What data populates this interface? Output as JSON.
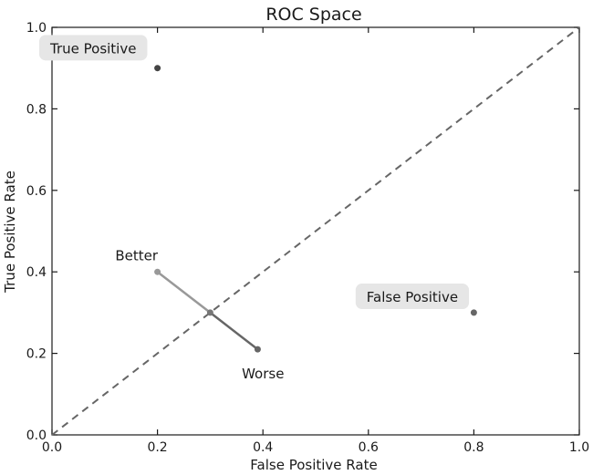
{
  "chart_data": {
    "type": "scatter",
    "title": "ROC Space",
    "xlabel": "False Positive Rate",
    "ylabel": "True Positive Rate",
    "xlim": [
      0.0,
      1.0
    ],
    "ylim": [
      0.0,
      1.0
    ],
    "x_ticks": [
      "0.0",
      "0.2",
      "0.4",
      "0.6",
      "0.8",
      "1.0"
    ],
    "y_ticks": [
      "0.0",
      "0.2",
      "0.4",
      "0.6",
      "0.8",
      "1.0"
    ],
    "grid": false,
    "diagonal": {
      "from": [
        0.0,
        0.0
      ],
      "to": [
        1.0,
        1.0
      ],
      "style": "dashed",
      "color": "#666666"
    },
    "points": [
      {
        "x": 0.2,
        "y": 0.9,
        "color": "#444444"
      },
      {
        "x": 0.8,
        "y": 0.3,
        "color": "#666666"
      },
      {
        "x": 0.2,
        "y": 0.4,
        "color": "#999999"
      },
      {
        "x": 0.3,
        "y": 0.3,
        "color": "#777777"
      },
      {
        "x": 0.39,
        "y": 0.21,
        "color": "#666666"
      }
    ],
    "segments": [
      {
        "from": [
          0.2,
          0.4
        ],
        "to": [
          0.3,
          0.3
        ],
        "color": "#999999"
      },
      {
        "from": [
          0.3,
          0.3
        ],
        "to": [
          0.39,
          0.21
        ],
        "color": "#666666"
      }
    ],
    "annotations": [
      {
        "text": "True Positive",
        "x": 0.0,
        "y": 0.95,
        "boxed": true
      },
      {
        "text": "False Positive",
        "x": 0.6,
        "y": 0.34,
        "boxed": true
      },
      {
        "text": "Better",
        "x": 0.12,
        "y": 0.44,
        "boxed": false
      },
      {
        "text": "Worse",
        "x": 0.36,
        "y": 0.15,
        "boxed": false
      }
    ]
  }
}
